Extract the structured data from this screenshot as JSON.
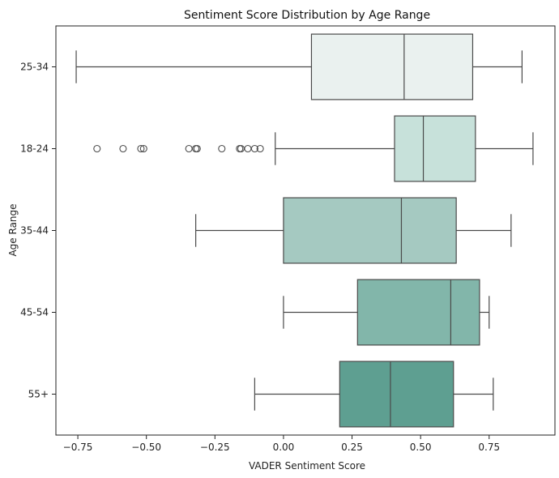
{
  "chart_data": {
    "type": "boxplot",
    "orientation": "horizontal",
    "title": "Sentiment Score Distribution by Age Range",
    "xlabel": "VADER Sentiment Score",
    "ylabel": "Age Range",
    "xlim": [
      -0.83,
      0.99
    ],
    "xticks": [
      -0.75,
      -0.5,
      -0.25,
      0.0,
      0.25,
      0.5,
      0.75
    ],
    "xtick_labels": [
      "−0.75",
      "−0.50",
      "−0.25",
      "0.00",
      "0.25",
      "0.50",
      "0.75"
    ],
    "grid": false,
    "categories": [
      "25-34",
      "18-24",
      "35-44",
      "45-54",
      "55+"
    ],
    "boxes": [
      {
        "category": "25-34",
        "whisker_low": -0.756,
        "q1": 0.102,
        "median": 0.44,
        "q3": 0.69,
        "whisker_high": 0.87,
        "outliers": [],
        "color": "#eaf1ef"
      },
      {
        "category": "18-24",
        "whisker_low": -0.03,
        "q1": 0.405,
        "median": 0.51,
        "q3": 0.7,
        "whisker_high": 0.91,
        "outliers": [
          -0.68,
          -0.585,
          -0.52,
          -0.51,
          -0.345,
          -0.32,
          -0.315,
          -0.225,
          -0.16,
          -0.155,
          -0.13,
          -0.105,
          -0.085
        ],
        "color": "#c7e1da"
      },
      {
        "category": "35-44",
        "whisker_low": -0.32,
        "q1": 0.0,
        "median": 0.43,
        "q3": 0.63,
        "whisker_high": 0.83,
        "outliers": [],
        "color": "#a5c9c1"
      },
      {
        "category": "45-54",
        "whisker_low": 0.0,
        "q1": 0.27,
        "median": 0.61,
        "q3": 0.715,
        "whisker_high": 0.75,
        "outliers": [],
        "color": "#82b6aa"
      },
      {
        "category": "55+",
        "whisker_low": -0.105,
        "q1": 0.205,
        "median": 0.39,
        "q3": 0.62,
        "whisker_high": 0.765,
        "outliers": [],
        "color": "#5e9f91"
      }
    ]
  }
}
